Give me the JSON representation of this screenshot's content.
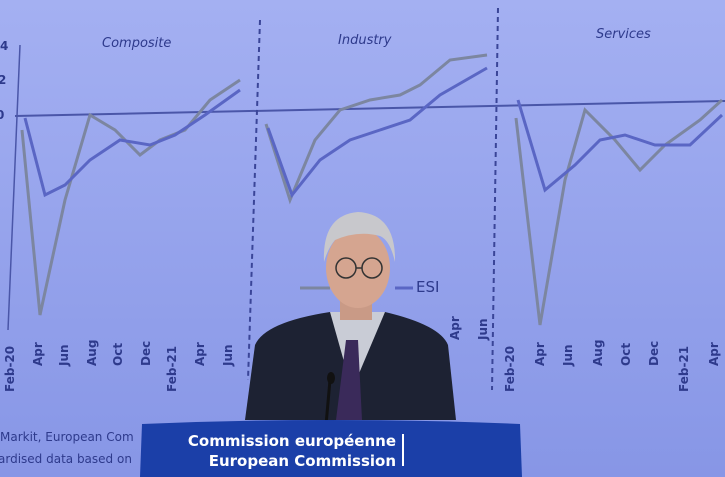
{
  "screen": {
    "y_labels": [
      "4",
      "2",
      "0"
    ],
    "panels": [
      {
        "title": "Composite",
        "x_labels": [
          "Feb-20",
          "Apr",
          "Jun",
          "Aug",
          "Oct",
          "Dec",
          "Feb-21",
          "Apr",
          "Jun"
        ]
      },
      {
        "title": "Industry",
        "x_labels": [
          "Apr",
          "Jun"
        ]
      },
      {
        "title": "Services",
        "x_labels": [
          "Feb-20",
          "Apr",
          "Jun",
          "Aug",
          "Oct",
          "Dec",
          "Feb-21",
          "Apr"
        ]
      }
    ],
    "legend": "ESI",
    "source": [
      "Markit, European Com",
      "ardised data based on"
    ]
  },
  "podium": {
    "lines": [
      "Commission européenne",
      "European Commission"
    ]
  }
}
